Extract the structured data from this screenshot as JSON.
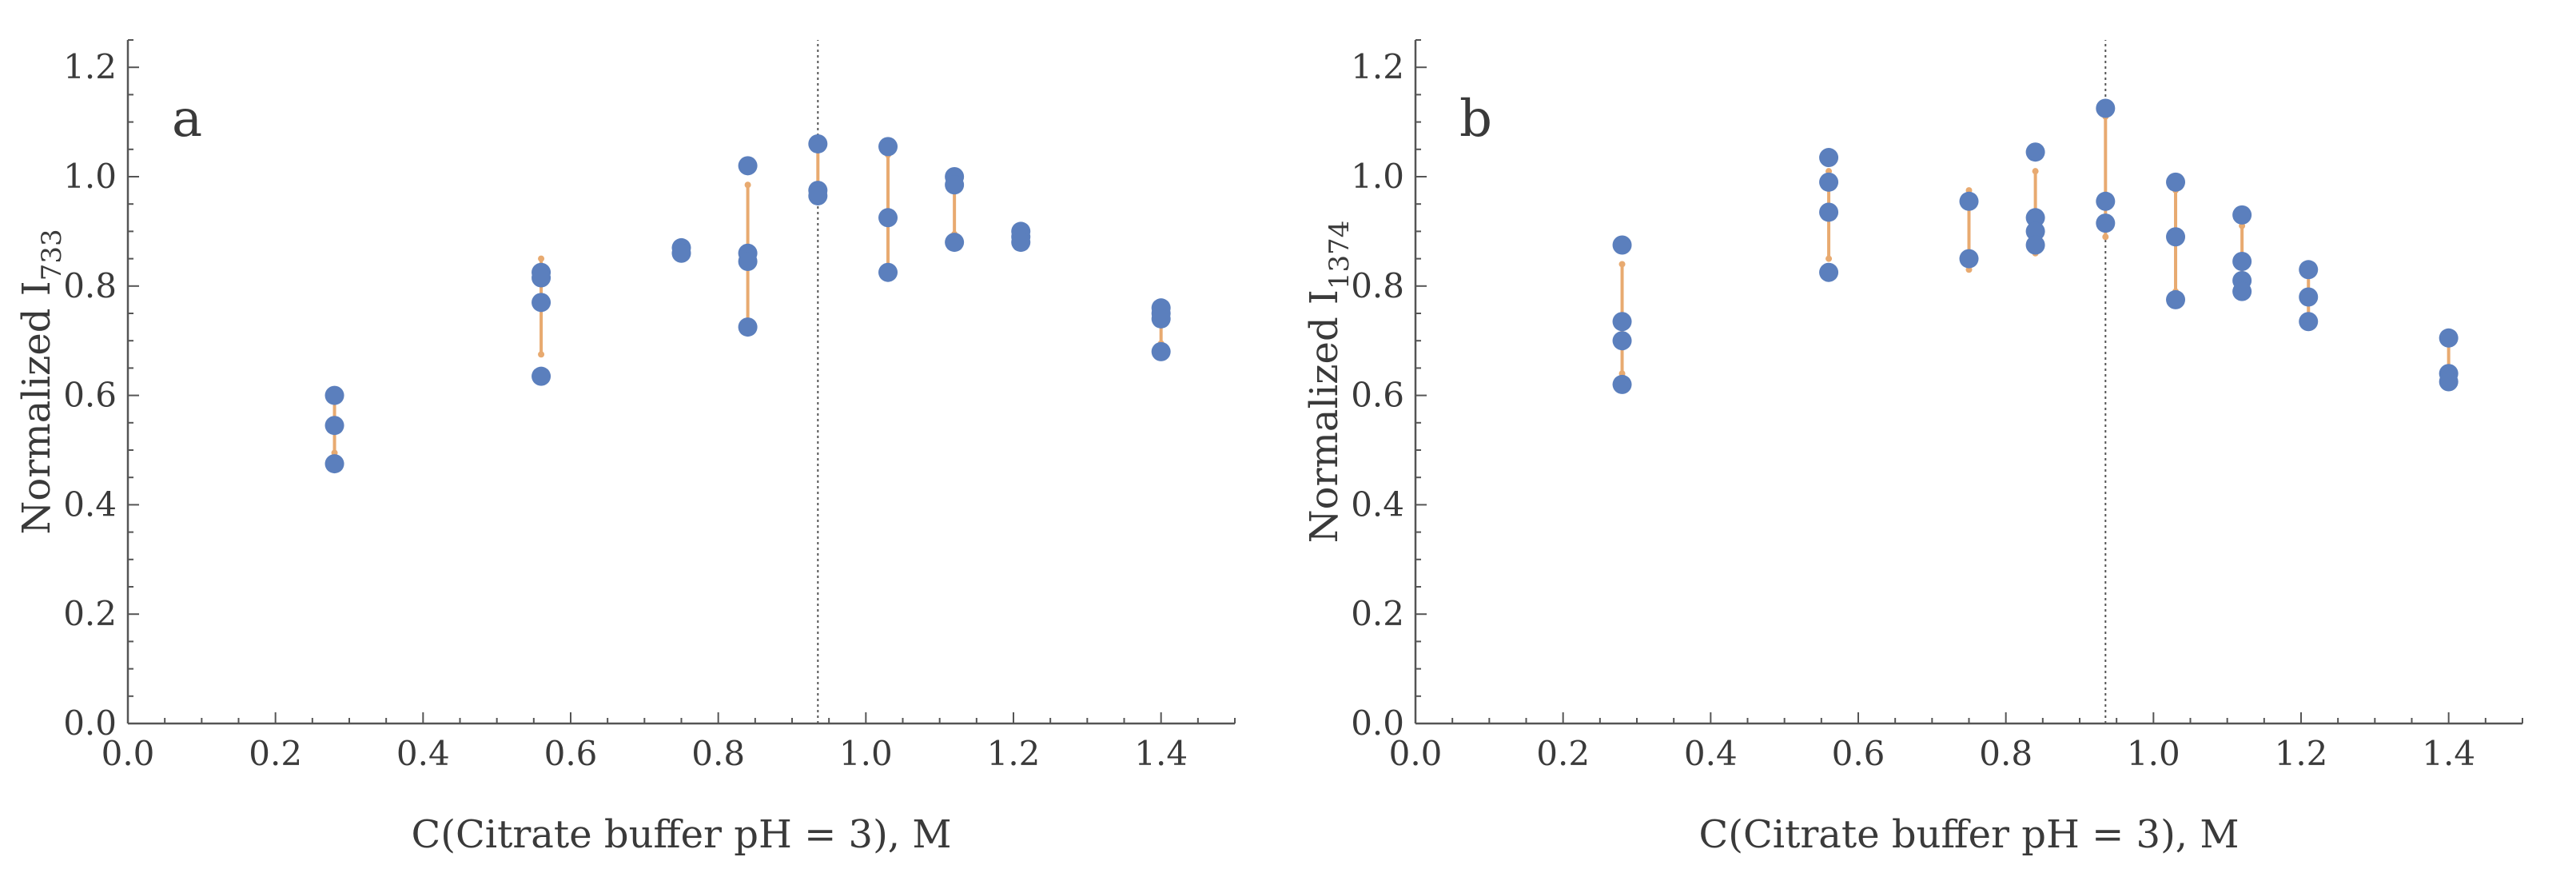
{
  "chart_data": [
    {
      "type": "scatter",
      "panel_label": "a",
      "xlabel": "C(Citrate buffer pH = 3), M",
      "ylabel_main": "Normalized I",
      "ylabel_sub": "733",
      "xlim": [
        0.0,
        1.5
      ],
      "ylim": [
        0.0,
        1.25
      ],
      "xticks": [
        0.0,
        0.2,
        0.4,
        0.6,
        0.8,
        1.0,
        1.2,
        1.4
      ],
      "yticks": [
        0.0,
        0.2,
        0.4,
        0.6,
        0.8,
        1.0,
        1.2
      ],
      "xtick_labels": [
        "0.0",
        "0.2",
        "0.4",
        "0.6",
        "0.8",
        "1.0",
        "1.2",
        "1.4"
      ],
      "ytick_labels": [
        "0.0",
        "0.2",
        "0.4",
        "0.6",
        "0.8",
        "1.0",
        "1.2"
      ],
      "reference_line_x": 0.935,
      "grid": false,
      "colors": {
        "points": "#5b7fbd",
        "error_bars": "#e8aa70",
        "reference_line": "#555555",
        "axes": "#555555"
      },
      "groups": [
        {
          "x": 0.28,
          "values": [
            0.6,
            0.545,
            0.475
          ],
          "err_low": 0.495,
          "err_high": 0.605
        },
        {
          "x": 0.56,
          "values": [
            0.825,
            0.815,
            0.77,
            0.635
          ],
          "err_low": 0.675,
          "err_high": 0.85
        },
        {
          "x": 0.75,
          "values": [
            0.87,
            0.86
          ],
          "err_low": 0.86,
          "err_high": 0.87
        },
        {
          "x": 0.84,
          "values": [
            1.02,
            0.86,
            0.845,
            0.725
          ],
          "err_low": 0.735,
          "err_high": 0.985
        },
        {
          "x": 0.935,
          "values": [
            1.06,
            0.975,
            0.965
          ],
          "err_low": 0.955,
          "err_high": 1.05
        },
        {
          "x": 1.03,
          "values": [
            1.055,
            0.925,
            0.825
          ],
          "err_low": 0.835,
          "err_high": 1.04
        },
        {
          "x": 1.12,
          "values": [
            1.0,
            0.985,
            0.88
          ],
          "err_low": 0.895,
          "err_high": 0.995
        },
        {
          "x": 1.21,
          "values": [
            0.9,
            0.89,
            0.88
          ],
          "err_low": 0.88,
          "err_high": 0.9
        },
        {
          "x": 1.4,
          "values": [
            0.76,
            0.75,
            0.74,
            0.68
          ],
          "err_low": 0.695,
          "err_high": 0.765
        }
      ]
    },
    {
      "type": "scatter",
      "panel_label": "b",
      "xlabel": "C(Citrate buffer pH = 3), M",
      "ylabel_main": "Normalized I",
      "ylabel_sub": "1374",
      "xlim": [
        0.0,
        1.5
      ],
      "ylim": [
        0.0,
        1.25
      ],
      "xticks": [
        0.0,
        0.2,
        0.4,
        0.6,
        0.8,
        1.0,
        1.2,
        1.4
      ],
      "yticks": [
        0.0,
        0.2,
        0.4,
        0.6,
        0.8,
        1.0,
        1.2
      ],
      "xtick_labels": [
        "0.0",
        "0.2",
        "0.4",
        "0.6",
        "0.8",
        "1.0",
        "1.2",
        "1.4"
      ],
      "ytick_labels": [
        "0.0",
        "0.2",
        "0.4",
        "0.6",
        "0.8",
        "1.0",
        "1.2"
      ],
      "reference_line_x": 0.935,
      "grid": false,
      "colors": {
        "points": "#5b7fbd",
        "error_bars": "#e8aa70",
        "reference_line": "#555555",
        "axes": "#555555"
      },
      "groups": [
        {
          "x": 0.28,
          "values": [
            0.875,
            0.735,
            0.7,
            0.62
          ],
          "err_low": 0.64,
          "err_high": 0.84
        },
        {
          "x": 0.56,
          "values": [
            1.035,
            0.99,
            0.935,
            0.825
          ],
          "err_low": 0.85,
          "err_high": 1.01
        },
        {
          "x": 0.75,
          "values": [
            0.955,
            0.85
          ],
          "err_low": 0.83,
          "err_high": 0.975
        },
        {
          "x": 0.84,
          "values": [
            1.045,
            0.925,
            0.9,
            0.875
          ],
          "err_low": 0.86,
          "err_high": 1.01
        },
        {
          "x": 0.935,
          "values": [
            1.125,
            0.955,
            0.915
          ],
          "err_low": 0.89,
          "err_high": 1.11
        },
        {
          "x": 1.03,
          "values": [
            0.99,
            0.89,
            0.775
          ],
          "err_low": 0.79,
          "err_high": 0.975
        },
        {
          "x": 1.12,
          "values": [
            0.93,
            0.845,
            0.81,
            0.79
          ],
          "err_low": 0.79,
          "err_high": 0.91
        },
        {
          "x": 1.21,
          "values": [
            0.83,
            0.78,
            0.735
          ],
          "err_low": 0.745,
          "err_high": 0.82
        },
        {
          "x": 1.4,
          "values": [
            0.705,
            0.64,
            0.625
          ],
          "err_low": 0.62,
          "err_high": 0.7
        }
      ]
    }
  ]
}
